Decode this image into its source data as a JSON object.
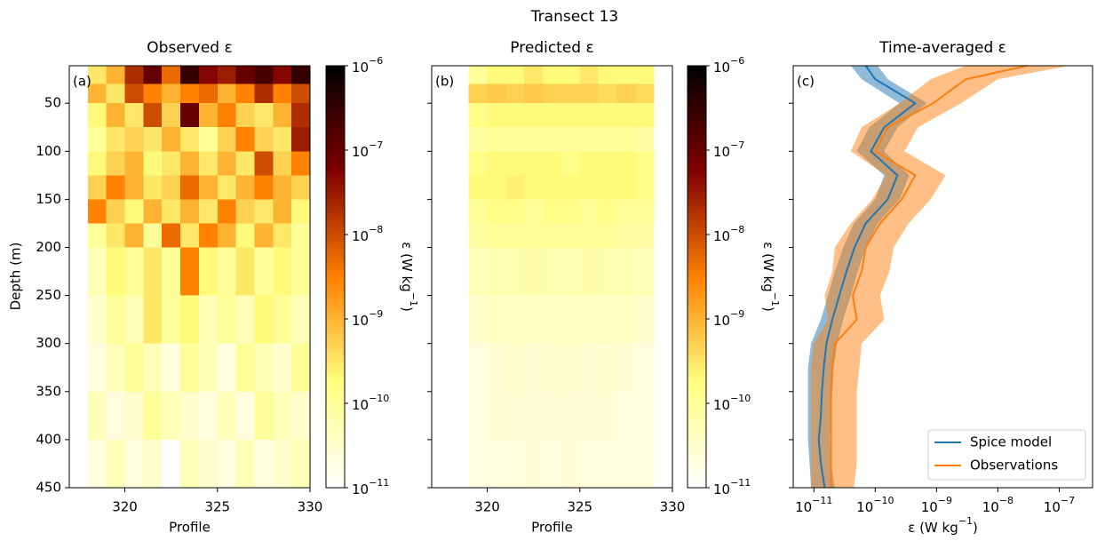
{
  "title": "Transect 13",
  "chart_data": [
    {
      "type": "heatmap",
      "title": "Observed ε",
      "panel_label": "(a)",
      "xlabel": "Profile",
      "ylabel": "Depth (m)",
      "xlim": [
        317,
        330
      ],
      "xticks": [
        320,
        325,
        330
      ],
      "ylim": [
        450,
        11
      ],
      "yticks": [
        50,
        100,
        150,
        200,
        250,
        300,
        350,
        400,
        450
      ],
      "show_ytick_labels": true,
      "x_edges": [
        318,
        319,
        320,
        321,
        322,
        323,
        324,
        325,
        326,
        327,
        328,
        329,
        330
      ],
      "y_edges": [
        11,
        30,
        50,
        75,
        100,
        125,
        150,
        175,
        200,
        250,
        300,
        350,
        400,
        450
      ],
      "values": [
        [
          3e-10,
          1e-09,
          2e-08,
          1e-07,
          5e-09,
          3e-07,
          5e-08,
          3e-08,
          1e-07,
          2e-07,
          5e-08,
          3e-07
        ],
        [
          1e-09,
          3e-10,
          1e-08,
          3e-09,
          1e-09,
          3e-09,
          5e-09,
          1e-09,
          3e-09,
          2e-08,
          3e-09,
          1e-08
        ],
        [
          2e-10,
          1e-09,
          3e-10,
          1e-08,
          5e-10,
          1e-07,
          1e-09,
          3e-09,
          5e-10,
          3e-10,
          1e-09,
          2e-08
        ],
        [
          1e-10,
          3e-10,
          5e-10,
          3e-10,
          1e-09,
          3e-10,
          1e-10,
          5e-10,
          3e-09,
          5e-10,
          3e-10,
          3e-08
        ],
        [
          2e-10,
          5e-10,
          1e-09,
          2e-10,
          3e-10,
          1e-09,
          3e-10,
          1e-09,
          3e-10,
          1e-08,
          5e-10,
          3e-09
        ],
        [
          5e-10,
          3e-09,
          1e-09,
          3e-10,
          5e-10,
          5e-09,
          1e-09,
          3e-10,
          1e-09,
          3e-09,
          1e-09,
          5e-10
        ],
        [
          3e-09,
          5e-10,
          2e-10,
          1e-09,
          3e-10,
          1e-09,
          3e-10,
          3e-09,
          5e-10,
          3e-10,
          1e-09,
          2e-10
        ],
        [
          1e-10,
          3e-10,
          1e-09,
          1e-10,
          5e-09,
          3e-10,
          3e-09,
          1e-09,
          2e-10,
          1e-09,
          3e-10,
          1e-10
        ],
        [
          5e-11,
          2e-10,
          1e-10,
          3e-10,
          1e-10,
          3e-09,
          2e-10,
          1e-10,
          3e-10,
          1e-10,
          2e-10,
          1e-10
        ],
        [
          3e-11,
          1e-10,
          5e-11,
          3e-10,
          1e-10,
          2e-10,
          5e-11,
          1e-10,
          5e-11,
          2e-10,
          1e-10,
          5e-11
        ],
        [
          2e-11,
          5e-11,
          1e-10,
          5e-11,
          2e-11,
          1e-10,
          5e-11,
          2e-11,
          1e-10,
          5e-11,
          3e-11,
          1e-10
        ],
        [
          5e-11,
          2e-11,
          3e-11,
          1e-10,
          5e-11,
          3e-11,
          2e-11,
          5e-11,
          2e-11,
          1e-10,
          5e-11,
          3e-11
        ],
        [
          2e-11,
          5e-11,
          2e-11,
          3e-11,
          1e-11,
          5e-11,
          3e-11,
          2e-11,
          5e-11,
          2e-11,
          3e-11,
          5e-11
        ]
      ],
      "colormap": "afmhot_r",
      "color_scale": "log",
      "clim": [
        1e-11,
        1e-06
      ],
      "cbar_ticks": [
        {
          "value": 1e-11,
          "label": "10−11"
        },
        {
          "value": 1e-10,
          "label": "10−10"
        },
        {
          "value": 1e-09,
          "label": "10−9"
        },
        {
          "value": 1e-08,
          "label": "10−8"
        },
        {
          "value": 1e-07,
          "label": "10−7"
        },
        {
          "value": 1e-06,
          "label": "10−6"
        }
      ],
      "cbar_label": "ε (W kg−1)"
    },
    {
      "type": "heatmap",
      "title": "Predicted ε",
      "panel_label": "(b)",
      "xlabel": "Profile",
      "xlim": [
        317,
        330
      ],
      "xticks": [
        320,
        325,
        330
      ],
      "ylim": [
        450,
        11
      ],
      "yticks": [
        50,
        100,
        150,
        200,
        250,
        300,
        350,
        400,
        450
      ],
      "show_ytick_labels": false,
      "x_edges": [
        319,
        320,
        321,
        322,
        323,
        324,
        325,
        326,
        327,
        328,
        329
      ],
      "y_edges": [
        11,
        30,
        50,
        75,
        100,
        125,
        150,
        175,
        200,
        250,
        300,
        350,
        400,
        450
      ],
      "values": [
        [
          1e-10,
          2e-10,
          2e-10,
          3e-10,
          2e-10,
          2e-10,
          3e-10,
          2e-10,
          2e-10,
          2e-10
        ],
        [
          5e-10,
          6e-10,
          5e-10,
          6e-10,
          5e-10,
          5e-10,
          5e-10,
          4e-10,
          5e-10,
          4e-10
        ],
        [
          1.5e-10,
          2e-10,
          2e-10,
          2e-10,
          2e-10,
          2e-10,
          2e-10,
          2e-10,
          2e-10,
          2e-10
        ],
        [
          8e-11,
          1e-10,
          1e-10,
          1e-10,
          1e-10,
          1e-10,
          1e-10,
          1e-10,
          1e-10,
          8e-11
        ],
        [
          1.5e-10,
          2e-10,
          2e-10,
          2e-10,
          2e-10,
          1.5e-10,
          2e-10,
          2e-10,
          2e-10,
          1.5e-10
        ],
        [
          2e-10,
          2e-10,
          2.5e-10,
          2e-10,
          2e-10,
          2e-10,
          2e-10,
          2e-10,
          2e-10,
          1.5e-10
        ],
        [
          1e-10,
          1.5e-10,
          1.5e-10,
          1e-10,
          1.5e-10,
          1.5e-10,
          1e-10,
          1.5e-10,
          1e-10,
          1e-10
        ],
        [
          8e-11,
          1e-10,
          1e-10,
          1e-10,
          1e-10,
          1e-10,
          1e-10,
          1e-10,
          8e-11,
          8e-11
        ],
        [
          5e-11,
          6e-11,
          6e-11,
          7e-11,
          6e-11,
          6e-11,
          7e-11,
          6e-11,
          6e-11,
          5e-11
        ],
        [
          3e-11,
          4e-11,
          4e-11,
          4e-11,
          4e-11,
          4e-11,
          4e-11,
          4e-11,
          4e-11,
          3e-11
        ],
        [
          2e-11,
          2.5e-11,
          3e-11,
          2.5e-11,
          3e-11,
          3e-11,
          2.5e-11,
          3e-11,
          2.5e-11,
          2e-11
        ],
        [
          2e-11,
          2.5e-11,
          2.5e-11,
          2.5e-11,
          2.5e-11,
          2.5e-11,
          2.5e-11,
          2.5e-11,
          2e-11,
          2e-11
        ],
        [
          2e-11,
          2e-11,
          2e-11,
          2.5e-11,
          2e-11,
          2.5e-11,
          2e-11,
          2e-11,
          2e-11,
          2e-11
        ]
      ],
      "colormap": "afmhot_r",
      "color_scale": "log",
      "clim": [
        1e-11,
        1e-06
      ],
      "cbar_ticks": [
        {
          "value": 1e-11,
          "label": "10−11"
        },
        {
          "value": 1e-10,
          "label": "10−10"
        },
        {
          "value": 1e-09,
          "label": "10−9"
        },
        {
          "value": 1e-08,
          "label": "10−8"
        },
        {
          "value": 1e-07,
          "label": "10−7"
        },
        {
          "value": 1e-06,
          "label": "10−6"
        }
      ],
      "cbar_label": "ε (W kg−1)"
    },
    {
      "type": "line",
      "title": "Time-averaged ε",
      "panel_label": "(c)",
      "xlabel": "ε (W kg−1)",
      "xscale": "log",
      "xlim": [
        4.6e-12,
        3.5e-07
      ],
      "xticks": [
        {
          "value": 1e-11,
          "label": "10−11"
        },
        {
          "value": 1e-10,
          "label": "10−10"
        },
        {
          "value": 1e-09,
          "label": "10−9"
        },
        {
          "value": 1e-08,
          "label": "10−8"
        },
        {
          "value": 1e-07,
          "label": "10−7"
        }
      ],
      "ylim": [
        450,
        11
      ],
      "yticks": [
        50,
        100,
        150,
        200,
        250,
        300,
        350,
        400,
        450
      ],
      "show_ytick_labels": false,
      "y": [
        11,
        25,
        50,
        75,
        100,
        125,
        150,
        175,
        200,
        225,
        250,
        275,
        300,
        325,
        350,
        375,
        400,
        425,
        450
      ],
      "series": [
        {
          "name": "Spice model",
          "color": "#1f77b4",
          "values": [
            7e-11,
            1e-10,
            4.5e-10,
            1.4e-10,
            8.5e-11,
            2.3e-10,
            1.6e-10,
            7e-11,
            4.6e-11,
            3.4e-11,
            2.6e-11,
            2e-11,
            1.6e-11,
            1.45e-11,
            1.35e-11,
            1.3e-11,
            1.2e-11,
            1.3e-11,
            1.5e-11
          ],
          "lower": [
            4e-11,
            6e-11,
            2.5e-10,
            8e-11,
            5e-11,
            1.4e-10,
            1e-10,
            4.5e-11,
            3e-11,
            2.2e-11,
            1.7e-11,
            1.3e-11,
            9e-12,
            8e-12,
            8e-12,
            8e-12,
            8e-12,
            8.5e-12,
            9e-12
          ],
          "upper": [
            1.1e-10,
            1.6e-10,
            7e-10,
            2.3e-10,
            1.4e-10,
            3.6e-10,
            2.5e-10,
            1.1e-10,
            7e-11,
            5.2e-11,
            4e-11,
            3e-11,
            2.4e-11,
            2.1e-11,
            2e-11,
            1.9e-11,
            1.8e-11,
            1.9e-11,
            2.2e-11
          ]
        },
        {
          "name": "Observations",
          "color": "#ff7f0e",
          "values": [
            3e-08,
            3e-09,
            8.8e-10,
            1.6e-10,
            1e-10,
            4.5e-10,
            2.7e-10,
            1.2e-10,
            7e-11,
            6e-11,
            4.3e-11,
            5e-11,
            2.2e-11,
            2e-11,
            1.9e-11,
            1.9e-11,
            1.9e-11,
            1.9e-11,
            1.9e-11
          ],
          "lower": [
            3e-09,
            8e-10,
            2.5e-10,
            6e-11,
            4e-11,
            1.5e-10,
            9e-11,
            4e-11,
            2.2e-11,
            2e-11,
            1.5e-11,
            1.7e-11,
            1e-11,
            9e-12,
            9e-12,
            9e-12,
            9e-12,
            9e-12,
            9e-12
          ],
          "upper": [
            1.5e-07,
            1e-08,
            2.5e-09,
            5e-10,
            3e-10,
            1.4e-09,
            8e-10,
            3.5e-10,
            2e-10,
            1.7e-10,
            1.2e-10,
            1.4e-10,
            6e-11,
            5.5e-11,
            5e-11,
            5e-11,
            5e-11,
            5e-11,
            4.5e-11
          ]
        }
      ],
      "legend": "lower right"
    }
  ]
}
